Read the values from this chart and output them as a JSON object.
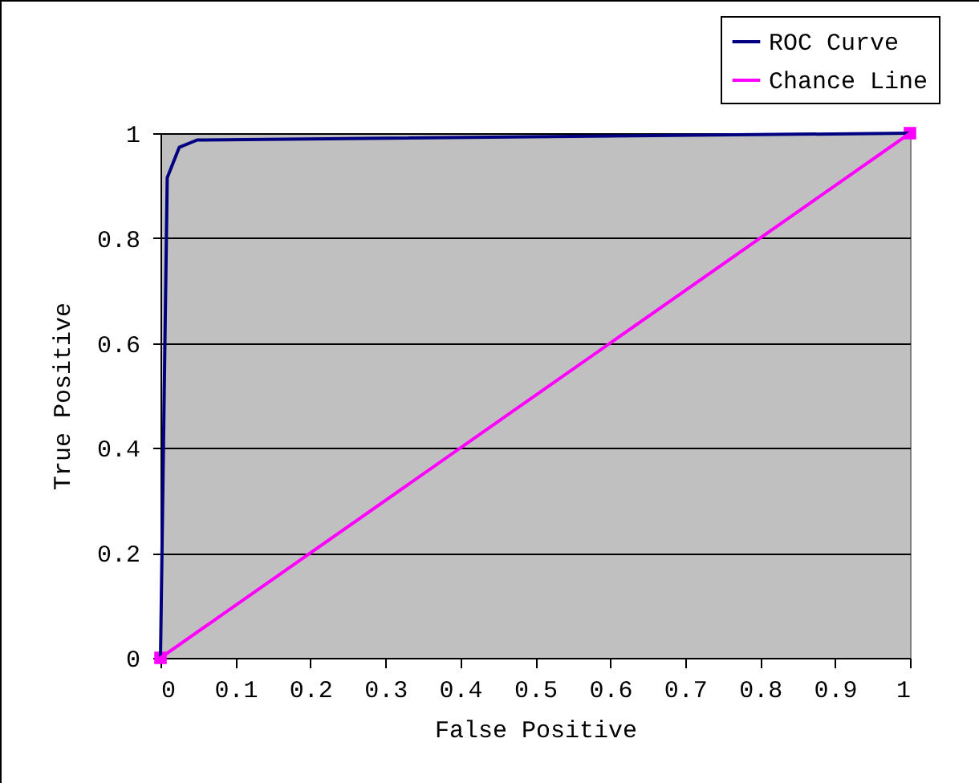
{
  "chart_data": {
    "type": "line",
    "xlabel": "False Positive",
    "ylabel": "True Positive",
    "series": [
      {
        "name": "ROC Curve",
        "color": "#000080",
        "marker": "none",
        "x": [
          0,
          0.009,
          0.025,
          0.049,
          1
        ],
        "values": [
          0,
          0.915,
          0.973,
          0.987,
          1
        ]
      },
      {
        "name": "Chance Line",
        "color": "#ff00ff",
        "marker": "square",
        "x": [
          0,
          1
        ],
        "values": [
          0,
          1
        ]
      }
    ],
    "xlim": [
      0,
      1
    ],
    "xticks": [
      0,
      0.1,
      0.2,
      0.3,
      0.4,
      0.5,
      0.6,
      0.7,
      0.8,
      0.9,
      1
    ],
    "ylim": [
      0,
      1
    ],
    "yticks": [
      0,
      0.2,
      0.4,
      0.6,
      0.8,
      1
    ],
    "grid": "y",
    "legend": "top right"
  }
}
